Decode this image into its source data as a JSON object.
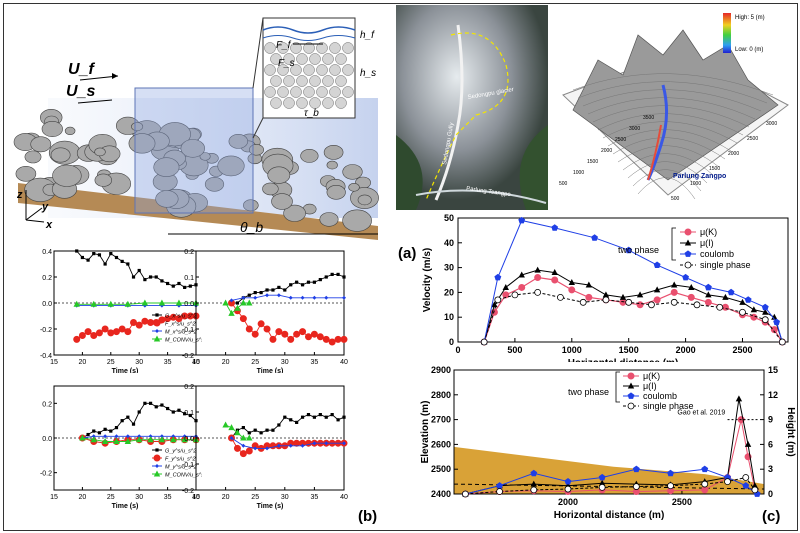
{
  "panel_labels": {
    "a": "(a)",
    "b": "(b)",
    "c": "(c)"
  },
  "schematic": {
    "uf": "U_f",
    "us": "U_s",
    "ff": "F_f",
    "fs": "F_s",
    "hf": "h_f",
    "hs": "h_s",
    "tau": "τ_b",
    "theta": "θ_b",
    "axes": [
      "z",
      "y",
      "x"
    ]
  },
  "photo": {
    "labels": [
      "Parlung Tsangpo",
      "Sedongpu Gully",
      "Sedongpu glacier"
    ]
  },
  "dem": {
    "legend_high": "High: 5 (m)",
    "legend_low": "Low: 0 (m)",
    "river": "Parlung Zangpo",
    "ticks_x": [
      "500",
      "1000",
      "1500",
      "2000",
      "2500",
      "3000"
    ],
    "ticks_y": [
      "500",
      "1000",
      "1500",
      "2000",
      "2500",
      "3000",
      "3500"
    ]
  },
  "colors": {
    "pink": "#e9506f",
    "black": "#000000",
    "blue": "#1f3fe6",
    "red": "#e8261e",
    "green": "#27c827",
    "terrain": "#d9a237"
  },
  "chart_data": [
    {
      "type": "line",
      "title": "",
      "xlabel": "Horizontal distance (m)",
      "ylabel": "Velocity (m/s)",
      "xlim": [
        0,
        2900
      ],
      "ylim": [
        0,
        50
      ],
      "xticks": [
        0,
        500,
        1000,
        1500,
        2000,
        2500
      ],
      "yticks": [
        0,
        10,
        20,
        30,
        40,
        50
      ],
      "legend_group": "two phase",
      "series": [
        {
          "name": "μ(K)",
          "color": "#e9506f",
          "x": [
            230,
            320,
            420,
            560,
            700,
            850,
            1000,
            1150,
            1300,
            1450,
            1600,
            1750,
            1900,
            2050,
            2200,
            2350,
            2500,
            2600,
            2700,
            2780,
            2850
          ],
          "y": [
            0,
            12,
            19,
            22,
            26,
            25,
            21,
            18,
            17,
            16,
            15,
            17,
            20,
            18,
            16,
            14,
            11,
            10,
            8,
            5,
            0
          ]
        },
        {
          "name": "μ(I)",
          "color": "#000000",
          "x": [
            230,
            320,
            420,
            560,
            700,
            850,
            1000,
            1150,
            1300,
            1450,
            1600,
            1750,
            1900,
            2050,
            2200,
            2350,
            2500,
            2600,
            2700,
            2780,
            2850
          ],
          "y": [
            0,
            15,
            22,
            27,
            29,
            28,
            24,
            23,
            19,
            18,
            19,
            21,
            23,
            22,
            19,
            18,
            16,
            13,
            12,
            10,
            0
          ]
        },
        {
          "name": "coulomb",
          "color": "#1f3fe6",
          "x": [
            230,
            350,
            560,
            850,
            1200,
            1500,
            1750,
            2000,
            2200,
            2400,
            2550,
            2700,
            2800,
            2850
          ],
          "y": [
            0,
            26,
            49,
            46,
            42,
            37,
            31,
            26,
            22,
            20,
            17,
            14,
            8,
            0
          ]
        },
        {
          "name": "single phase",
          "color": "#000000",
          "x": [
            230,
            350,
            500,
            700,
            900,
            1100,
            1300,
            1500,
            1700,
            1900,
            2100,
            2300,
            2500,
            2700,
            2850
          ],
          "y": [
            0,
            17,
            19,
            20,
            18,
            16,
            17,
            16,
            15,
            16,
            15,
            14,
            12,
            9,
            0
          ]
        }
      ]
    },
    {
      "type": "line",
      "title": "",
      "xlabel": "Horizontal distance (m)",
      "ylabel": "Elevation (m)",
      "ylabel_right": "Height (m)",
      "ylim": [
        2400,
        2900
      ],
      "ylim_right": [
        0,
        15
      ],
      "xticks": [
        2000,
        2500
      ],
      "yticks": [
        2400,
        2500,
        2600,
        2700,
        2800,
        2900
      ],
      "yticks_right": [
        0,
        3,
        6,
        9,
        12,
        15
      ],
      "legend_group": "two phase",
      "annotation": "Gao et al. 2019",
      "series": [
        {
          "name": "μ(K)",
          "color": "#e9506f",
          "x": [
            1550,
            1700,
            1850,
            2000,
            2150,
            2300,
            2450,
            2600,
            2700,
            2760,
            2790,
            2820
          ],
          "y": [
            0,
            0.3,
            0.4,
            0.3,
            0.5,
            0.3,
            0.4,
            0.5,
            2.0,
            9.0,
            4.5,
            0.5
          ]
        },
        {
          "name": "μ(I)",
          "color": "#000000",
          "x": [
            1550,
            1700,
            1850,
            2000,
            2150,
            2300,
            2450,
            2600,
            2700,
            2750,
            2790,
            2820
          ],
          "y": [
            0,
            1.0,
            1.2,
            1.0,
            1.3,
            1.2,
            1.1,
            1.5,
            2.0,
            11.5,
            6.0,
            1.0
          ]
        },
        {
          "name": "coulomb",
          "color": "#1f3fe6",
          "x": [
            1550,
            1700,
            1850,
            2000,
            2150,
            2300,
            2450,
            2600,
            2700,
            2780,
            2830
          ],
          "y": [
            0,
            1.0,
            2.5,
            1.5,
            2.0,
            3.0,
            2.5,
            3.0,
            2.0,
            1.0,
            0
          ]
        },
        {
          "name": "single phase",
          "color": "#000000",
          "x": [
            1550,
            1700,
            1850,
            2000,
            2150,
            2300,
            2450,
            2600,
            2700,
            2780,
            2820
          ],
          "y": [
            0,
            0.3,
            0.5,
            0.6,
            0.8,
            0.9,
            1.0,
            1.2,
            1.5,
            2.0,
            0.5
          ]
        }
      ]
    },
    {
      "type": "line",
      "title": "",
      "xlabel": "Time (s)",
      "ylabel": "",
      "xlim": [
        15,
        40
      ],
      "ylim": [
        -0.4,
        0.4
      ],
      "yticks": [
        -0.4,
        -0.2,
        0.0,
        0.2,
        0.4
      ],
      "xticks": [
        15,
        20,
        25,
        30,
        35,
        40
      ],
      "series": [
        {
          "name": "G_x^s/u_s^2",
          "color": "#000000",
          "x": [
            19,
            20,
            21,
            22,
            23,
            24,
            25,
            26,
            27,
            28,
            29,
            30,
            31,
            32,
            33,
            34,
            35,
            36,
            37,
            38,
            39,
            40
          ],
          "y": [
            0.4,
            0.35,
            0.33,
            0.38,
            0.37,
            0.3,
            0.38,
            0.35,
            0.32,
            0.3,
            0.2,
            0.25,
            0.18,
            0.2,
            0.2,
            0.17,
            0.15,
            0.13,
            0.15,
            0.12,
            0.13,
            0.14
          ]
        },
        {
          "name": "F_x^s/u_s^2",
          "color": "#e8261e",
          "x": [
            19,
            20,
            21,
            22,
            23,
            24,
            25,
            26,
            27,
            28,
            29,
            30,
            31,
            32,
            33,
            34,
            35,
            36,
            37,
            38,
            39,
            40
          ],
          "y": [
            -0.28,
            -0.25,
            -0.22,
            -0.25,
            -0.23,
            -0.2,
            -0.23,
            -0.22,
            -0.2,
            -0.22,
            -0.15,
            -0.17,
            -0.14,
            -0.15,
            -0.15,
            -0.13,
            -0.12,
            -0.11,
            -0.12,
            -0.1,
            -0.1,
            -0.1
          ]
        },
        {
          "name": "M_x^s/u_s^2",
          "color": "#1f3fe6",
          "x": [
            19,
            22,
            25,
            28,
            31,
            34,
            37,
            40
          ],
          "y": [
            -0.02,
            -0.02,
            -0.02,
            -0.02,
            -0.02,
            -0.02,
            -0.02,
            -0.02
          ]
        },
        {
          "name": "M_CONV/u_s^2",
          "color": "#27c827",
          "x": [
            19,
            22,
            25,
            28,
            31,
            34,
            37,
            40
          ],
          "y": [
            -0.01,
            -0.01,
            -0.01,
            -0.01,
            0,
            0,
            0,
            0
          ]
        }
      ]
    },
    {
      "type": "line",
      "title": "",
      "xlabel": "Time (s)",
      "ylabel": "",
      "xlim": [
        15,
        40
      ],
      "ylim": [
        -0.2,
        0.2
      ],
      "yticks": [
        -0.2,
        -0.1,
        0.0,
        0.1,
        0.2
      ],
      "xticks": [
        15,
        20,
        25,
        30,
        35,
        40
      ],
      "series": [
        {
          "name": "G_x^f/u_s^2",
          "color": "#000000",
          "x": [
            21,
            22,
            23,
            24,
            25,
            26,
            27,
            28,
            29,
            30,
            31,
            32,
            33,
            34,
            35,
            36,
            37,
            38,
            39,
            40
          ],
          "y": [
            0,
            0,
            0.02,
            0.03,
            0.04,
            0.04,
            0.05,
            0.05,
            0.06,
            0.05,
            0.07,
            0.08,
            0.07,
            0.08,
            0.08,
            0.09,
            0.1,
            0.11,
            0.11,
            0.1
          ]
        },
        {
          "name": "F_x^f/u_s^2",
          "color": "#e8261e",
          "x": [
            21,
            22,
            23,
            24,
            25,
            26,
            27,
            28,
            29,
            30,
            31,
            32,
            33,
            34,
            35,
            36,
            37,
            38,
            39,
            40
          ],
          "y": [
            0,
            -0.03,
            -0.06,
            -0.1,
            -0.12,
            -0.08,
            -0.1,
            -0.14,
            -0.11,
            -0.12,
            -0.14,
            -0.12,
            -0.11,
            -0.13,
            -0.12,
            -0.13,
            -0.14,
            -0.15,
            -0.14,
            -0.14
          ]
        },
        {
          "name": "M_x^f/u_s^2",
          "color": "#1f3fe6",
          "x": [
            21,
            23,
            25,
            27,
            29,
            31,
            33,
            35,
            37,
            40
          ],
          "y": [
            0.01,
            0.02,
            0.02,
            0.03,
            0.03,
            0.02,
            0.02,
            0.02,
            0.02,
            0.02
          ]
        },
        {
          "name": "M_CONV/u_s^2",
          "color": "#27c827",
          "x": [
            20,
            21,
            22,
            23,
            24
          ],
          "y": [
            0,
            -0.04,
            -0.02,
            0,
            0
          ]
        }
      ]
    },
    {
      "type": "line",
      "title": "",
      "xlabel": "Time (s)",
      "ylabel": "",
      "xlim": [
        15,
        40
      ],
      "ylim": [
        -0.3,
        0.3
      ],
      "yticks": [
        -0.2,
        0.0,
        0.2
      ],
      "xticks": [
        15,
        20,
        25,
        30,
        35,
        40
      ],
      "series": [
        {
          "name": "G_y^s/u_s^2",
          "color": "#000000",
          "x": [
            20,
            21,
            22,
            23,
            24,
            25,
            26,
            27,
            28,
            29,
            30,
            31,
            32,
            33,
            34,
            35,
            36,
            37,
            38,
            39,
            40
          ],
          "y": [
            0,
            0.02,
            0.04,
            0.03,
            0.05,
            0.04,
            0.06,
            0.1,
            0.12,
            0.08,
            0.15,
            0.2,
            0.2,
            0.18,
            0.19,
            0.17,
            0.15,
            0.16,
            0.14,
            0.13,
            0.1
          ]
        },
        {
          "name": "F_y^s/u_s^2",
          "color": "#e8261e",
          "x": [
            20,
            22,
            24,
            26,
            28,
            30,
            32,
            34,
            36,
            38,
            40
          ],
          "y": [
            0,
            -0.02,
            -0.03,
            -0.02,
            -0.01,
            -0.01,
            -0.02,
            -0.02,
            -0.01,
            -0.01,
            -0.01
          ]
        },
        {
          "name": "M_y^s/u_s^2",
          "color": "#1f3fe6",
          "x": [
            20,
            22,
            24,
            26,
            28,
            30,
            32,
            34,
            36,
            38,
            40
          ],
          "y": [
            0,
            0.01,
            0.01,
            0.01,
            0.01,
            0.01,
            0.01,
            0.01,
            0.01,
            0.01,
            0.01
          ]
        },
        {
          "name": "M_CONV/u_s^2",
          "color": "#27c827",
          "x": [
            20,
            22,
            24,
            26,
            28,
            30,
            32,
            34,
            36,
            38,
            40
          ],
          "y": [
            0,
            -0.01,
            -0.02,
            -0.02,
            -0.02,
            -0.01,
            -0.01,
            -0.01,
            -0.01,
            -0.01,
            -0.01
          ]
        }
      ]
    },
    {
      "type": "line",
      "title": "",
      "xlabel": "Time (s)",
      "ylabel": "",
      "xlim": [
        15,
        40
      ],
      "ylim": [
        -0.2,
        0.2
      ],
      "yticks": [
        -0.2,
        -0.1,
        0.0,
        0.1,
        0.2
      ],
      "xticks": [
        15,
        20,
        25,
        30,
        35,
        40
      ],
      "series": [
        {
          "name": "G_y^f/u_s^2",
          "color": "#000000",
          "x": [
            21,
            22,
            23,
            24,
            25,
            26,
            27,
            28,
            29,
            30,
            31,
            32,
            33,
            34,
            35,
            36,
            37,
            38,
            39,
            40
          ],
          "y": [
            0,
            0.03,
            0.04,
            0.02,
            0.03,
            0.02,
            0.03,
            0.03,
            0.05,
            0.08,
            0.07,
            0.06,
            0.08,
            0.09,
            0.08,
            0.09,
            0.08,
            0.09,
            0.07,
            0.08
          ]
        },
        {
          "name": "F_y^f/u_s^2",
          "color": "#e8261e",
          "x": [
            21,
            22,
            23,
            24,
            25,
            26,
            27,
            28,
            29,
            30,
            31,
            32,
            33,
            34,
            35,
            36,
            37,
            38,
            39,
            40
          ],
          "y": [
            0,
            -0.04,
            -0.06,
            -0.05,
            -0.03,
            -0.04,
            -0.03,
            -0.03,
            -0.03,
            -0.03,
            -0.02,
            -0.02,
            -0.02,
            -0.02,
            -0.02,
            -0.02,
            -0.02,
            -0.02,
            -0.02,
            -0.02
          ]
        },
        {
          "name": "M_y^f/u_s^2",
          "color": "#1f3fe6",
          "x": [
            21,
            23,
            25,
            27,
            29,
            31,
            33,
            35,
            37,
            40
          ],
          "y": [
            0,
            -0.03,
            -0.04,
            -0.04,
            -0.03,
            -0.03,
            -0.03,
            -0.02,
            -0.02,
            -0.02
          ]
        },
        {
          "name": "M_CONV/u_s^2",
          "color": "#27c827",
          "x": [
            20,
            21,
            22,
            23,
            24
          ],
          "y": [
            0.05,
            0.04,
            0.02,
            0,
            0
          ]
        }
      ]
    }
  ]
}
